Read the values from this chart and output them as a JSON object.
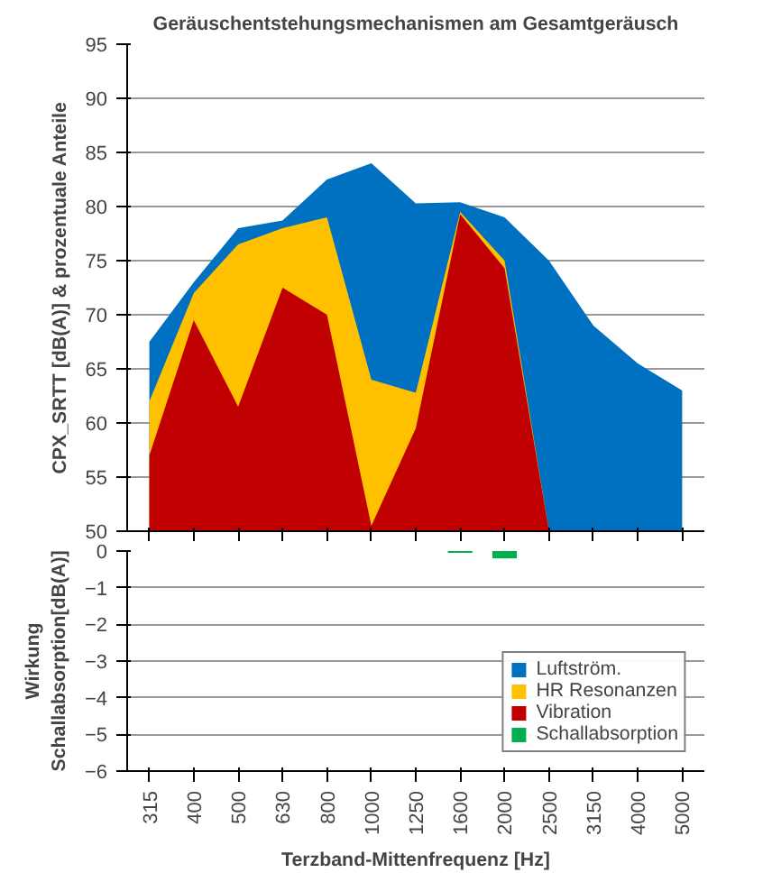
{
  "chart_data": [
    {
      "type": "area",
      "title": "Geräuschentstehungsmechanismen am Gesamtgeräusch",
      "ylabel": "CPX_SRTT [dB(A)] & prozentuale Anteile",
      "categories": [
        "315",
        "400",
        "500",
        "630",
        "800",
        "1000",
        "1250",
        "1600",
        "2000",
        "2500",
        "3150",
        "4000",
        "5000"
      ],
      "series": [
        {
          "color": "#0070c0",
          "values": [
            67.5,
            73,
            78,
            78.7,
            82.5,
            84,
            80.3,
            80.4,
            79,
            75,
            69,
            65.5,
            63
          ]
        },
        {
          "color": "#ffc000",
          "values": [
            62,
            72,
            76.5,
            78,
            79,
            64,
            62.8,
            79.5,
            75,
            50,
            null,
            null,
            null
          ]
        },
        {
          "color": "#c00000",
          "values": [
            57,
            69.5,
            61.5,
            72.5,
            70,
            50.5,
            59.5,
            79.3,
            74.3,
            50,
            null,
            null,
            null
          ]
        }
      ],
      "ylim": [
        50,
        95
      ],
      "yticks": [
        50,
        55,
        60,
        65,
        70,
        75,
        80,
        85,
        90,
        95
      ],
      "grid": "y",
      "tick_labels": "y"
    },
    {
      "type": "bar",
      "xlabel": "Terzband-Mittenfrequenz [Hz]",
      "ylabel": "Wirkung Schallabsorption[dB(A)]",
      "categories": [
        "315",
        "400",
        "500",
        "630",
        "800",
        "1000",
        "1250",
        "1600",
        "2000",
        "2500",
        "3150",
        "4000",
        "5000"
      ],
      "series": [
        {
          "name": "Luftström.",
          "type": "area",
          "color": "#0070c0",
          "values": [
            null,
            null,
            null,
            null,
            null,
            null,
            null,
            null,
            null,
            null,
            null,
            null,
            null
          ]
        },
        {
          "name": "HR Resonanzen",
          "type": "area",
          "color": "#ffc000",
          "values": [
            null,
            null,
            null,
            null,
            null,
            null,
            null,
            null,
            null,
            null,
            null,
            null,
            null
          ]
        },
        {
          "name": "Vibration",
          "type": "area",
          "color": "#c00000",
          "values": [
            null,
            null,
            null,
            null,
            null,
            null,
            null,
            null,
            null,
            null,
            null,
            null,
            null
          ]
        },
        {
          "name": "Schallabsorption",
          "color": "#00b050",
          "values": [
            null,
            null,
            null,
            null,
            null,
            null,
            null,
            -0.05,
            -0.2,
            null,
            null,
            null,
            null
          ]
        }
      ],
      "ylim": [
        -6,
        0
      ],
      "yticks": [
        0,
        -1,
        -2,
        -3,
        -4,
        -5,
        -6
      ],
      "grid": "y",
      "legend": "bottom right"
    }
  ]
}
